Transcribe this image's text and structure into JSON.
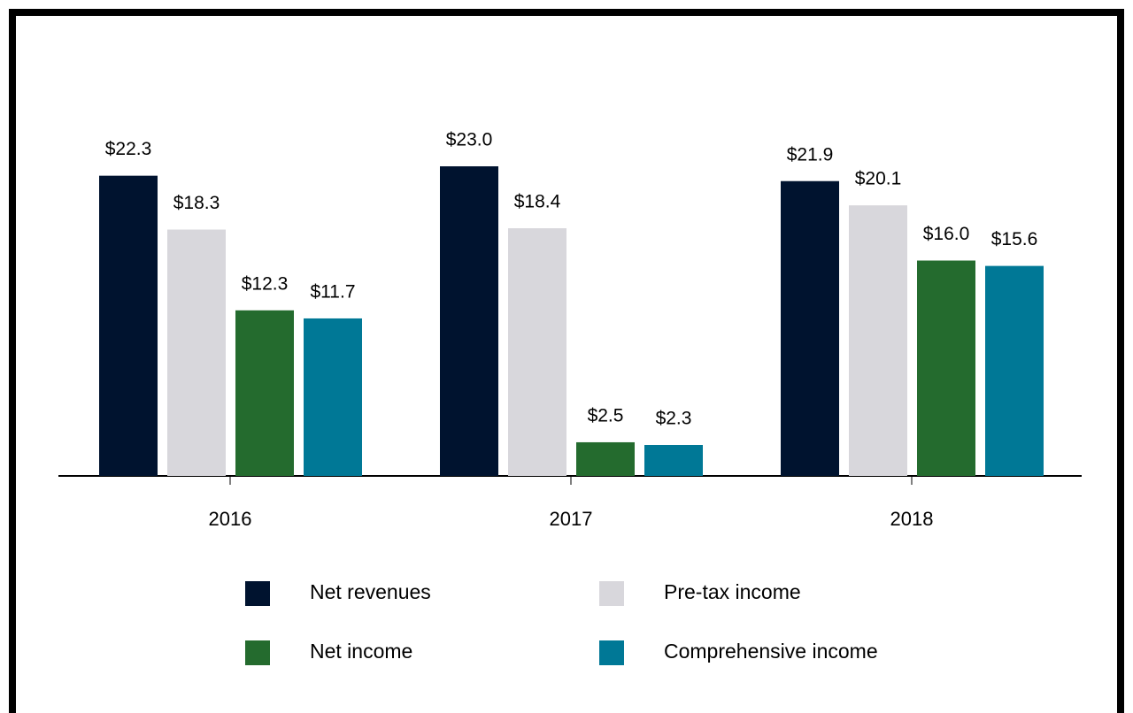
{
  "chart_data": {
    "type": "bar",
    "categories": [
      "2016",
      "2017",
      "2018"
    ],
    "series": [
      {
        "name": "Net revenues",
        "color": "#00132f",
        "values": [
          22.3,
          23.0,
          21.9
        ],
        "value_labels": [
          "$22.3",
          "$23.0",
          "$21.9"
        ]
      },
      {
        "name": "Pre-tax income",
        "color": "#d8d7dc",
        "values": [
          18.3,
          18.4,
          20.1
        ],
        "value_labels": [
          "$18.3",
          "$18.4",
          "$20.1"
        ]
      },
      {
        "name": "Net income",
        "color": "#246b2e",
        "values": [
          12.3,
          2.5,
          16.0
        ],
        "value_labels": [
          "$12.3",
          "$2.5",
          "$16.0"
        ]
      },
      {
        "name": "Comprehensive income",
        "color": "#007896",
        "values": [
          11.7,
          2.3,
          15.6
        ],
        "value_labels": [
          "$11.7",
          "$2.3",
          "$15.6"
        ]
      }
    ]
  }
}
